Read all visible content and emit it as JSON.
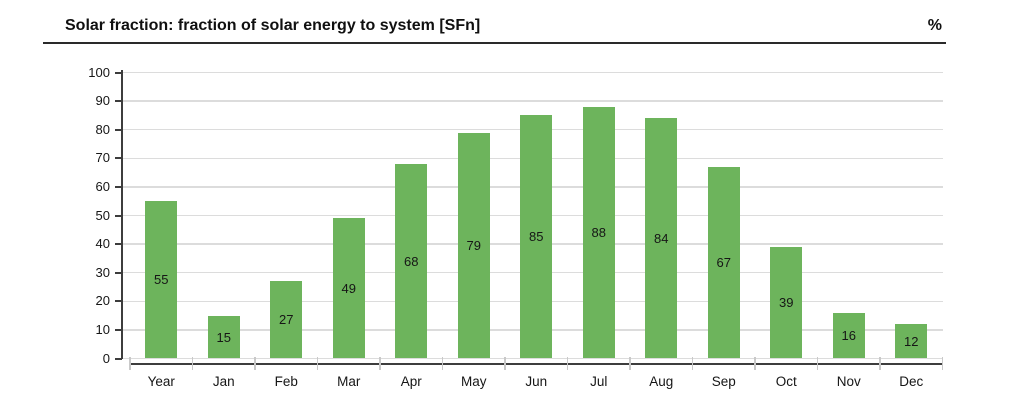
{
  "header": {
    "title": "Solar fraction: fraction of solar energy to system [SFn]",
    "unit": "%"
  },
  "chart_data": {
    "type": "bar",
    "title": "Solar fraction: fraction of solar energy to system [SFn]",
    "categories": [
      "Year",
      "Jan",
      "Feb",
      "Mar",
      "Apr",
      "May",
      "Jun",
      "Jul",
      "Aug",
      "Sep",
      "Oct",
      "Nov",
      "Dec"
    ],
    "values": [
      55,
      15,
      27,
      49,
      68,
      79,
      85,
      88,
      84,
      67,
      39,
      16,
      12
    ],
    "xlabel": "",
    "ylabel": "%",
    "ylim": [
      0,
      100
    ],
    "ytick_step": 10,
    "ytick_labels": [
      "0",
      "10",
      "20",
      "30",
      "40",
      "50",
      "60",
      "70",
      "80",
      "90",
      "100"
    ],
    "grid": "horizontal",
    "legend": "none",
    "value_labels_position": "inside-center",
    "bar_color": "#6DB45C",
    "gridline_color": "#DCDCDC",
    "axis_color": "#3D3D3D",
    "category_tick_color": "#C9C9C9",
    "label_color": "#161616"
  }
}
